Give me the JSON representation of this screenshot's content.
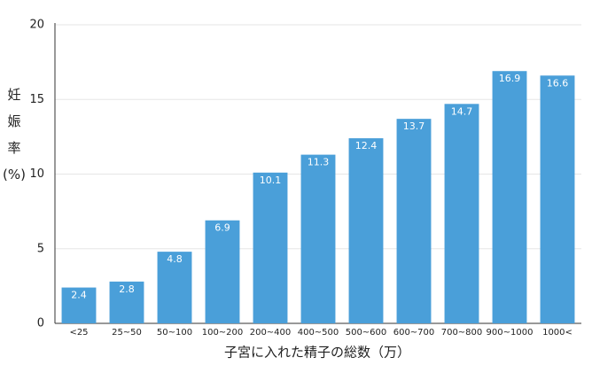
{
  "chart_data": {
    "type": "bar",
    "x_label": "子宮に入れた精子の総数（万）",
    "y_label": "妊娠率(%)",
    "categories": [
      "<25",
      "25~50",
      "50~100",
      "100~200",
      "200~400",
      "400~500",
      "500~600",
      "600~700",
      "700~800",
      "900~1000",
      "1000<"
    ],
    "values": [
      2.4,
      2.8,
      4.8,
      6.9,
      10.1,
      11.3,
      12.4,
      13.7,
      14.7,
      16.9,
      16.6
    ],
    "color": "#4a9fd9",
    "ylim": [
      0,
      20
    ],
    "yticks": [
      0,
      5,
      10,
      15,
      20
    ],
    "grid": true
  }
}
